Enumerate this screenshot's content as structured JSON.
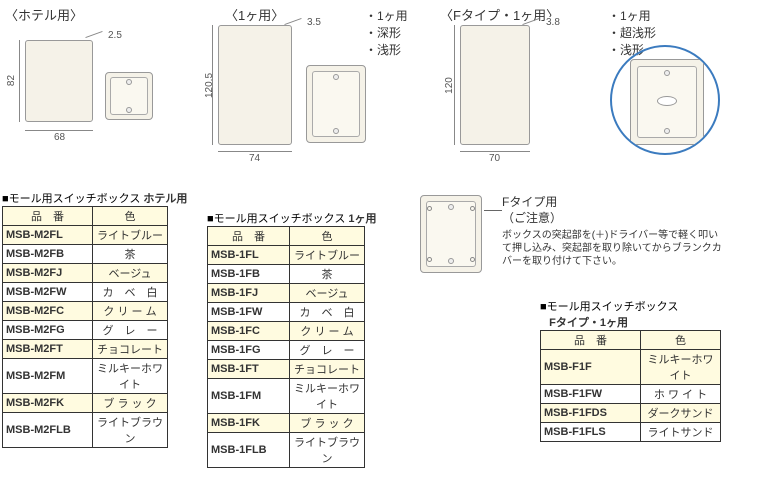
{
  "sections": {
    "hotel": {
      "label": "〈ホテル用〉"
    },
    "one": {
      "label": "〈1ヶ用〉",
      "bullets": [
        "・1ヶ用",
        "・深形",
        "・浅形"
      ]
    },
    "ftype": {
      "label": "〈Fタイプ・1ヶ用〉",
      "bullets": [
        "・1ヶ用",
        "・超浅形",
        "・浅形"
      ]
    }
  },
  "dims": {
    "hotel": {
      "w": "68",
      "h": "82",
      "t": "2.5"
    },
    "one": {
      "w": "74",
      "h": "120.5",
      "t": "3.5"
    },
    "ftype": {
      "w": "70",
      "h": "120",
      "t": "3.8"
    }
  },
  "tables": {
    "hotel": {
      "title_prefix": "■モール用スイッチボックス ",
      "title_suffix": "ホテル用",
      "headers": [
        "品　番",
        "色"
      ],
      "rows": [
        [
          "MSB-M2FL",
          "ライトブルー"
        ],
        [
          "MSB-M2FB",
          "茶"
        ],
        [
          "MSB-M2FJ",
          "ベージュ"
        ],
        [
          "MSB-M2FW",
          "カ　ベ　白"
        ],
        [
          "MSB-M2FC",
          "ク リ ー ム"
        ],
        [
          "MSB-M2FG",
          "グ　レ　ー"
        ],
        [
          "MSB-M2FT",
          "チョコレート"
        ],
        [
          "MSB-M2FM",
          "ミルキーホワイト"
        ],
        [
          "MSB-M2FK",
          "ブ ラ ッ ク"
        ],
        [
          "MSB-M2FLB",
          "ライトブラウン"
        ]
      ]
    },
    "one": {
      "title_prefix": "■モール用スイッチボックス ",
      "title_suffix": "1ヶ用",
      "headers": [
        "品　番",
        "色"
      ],
      "rows": [
        [
          "MSB-1FL",
          "ライトブルー"
        ],
        [
          "MSB-1FB",
          "茶"
        ],
        [
          "MSB-1FJ",
          "ベージュ"
        ],
        [
          "MSB-1FW",
          "カ　ベ　白"
        ],
        [
          "MSB-1FC",
          "ク リ ー ム"
        ],
        [
          "MSB-1FG",
          "グ　レ　ー"
        ],
        [
          "MSB-1FT",
          "チョコレート"
        ],
        [
          "MSB-1FM",
          "ミルキーホワイト"
        ],
        [
          "MSB-1FK",
          "ブ ラ ッ ク"
        ],
        [
          "MSB-1FLB",
          "ライトブラウン"
        ]
      ]
    },
    "ftype": {
      "title_prefix": "■モール用スイッチボックス",
      "title_suffix": "Fタイプ・1ヶ用",
      "headers": [
        "品　番",
        "色"
      ],
      "rows": [
        [
          "MSB-F1F",
          "ミルキーホワイト"
        ],
        [
          "MSB-F1FW",
          "ホ ワ イ ト"
        ],
        [
          "MSB-F1FDS",
          "ダークサンド"
        ],
        [
          "MSB-F1FLS",
          "ライトサンド"
        ]
      ]
    }
  },
  "note": {
    "title": "Fタイプ用",
    "subtitle": "（ご注意）",
    "body": "ボックスの突起部を(＋)ドライバー等で軽く叩いて押し込み、突起部を取り除いてからブランクカバーを取り付けて下さい。"
  },
  "style": {
    "plate_bg": "#f5f2e8",
    "header_bg": "#fffbe0",
    "border": "#333"
  }
}
